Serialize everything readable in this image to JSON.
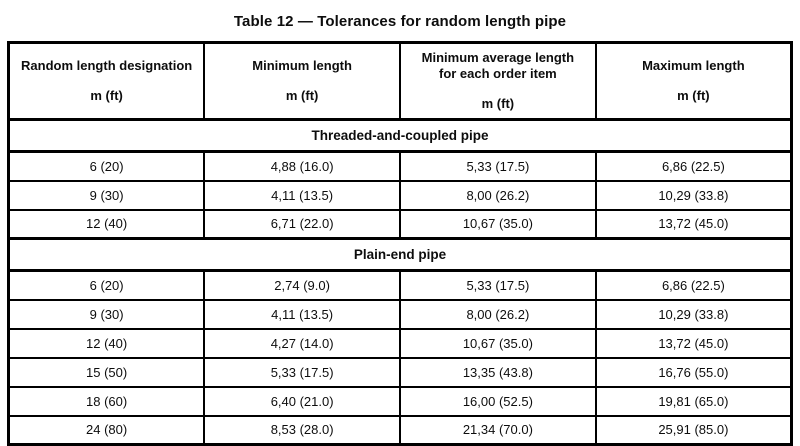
{
  "title": "Table 12 — Tolerances for random length pipe",
  "table": {
    "columns": [
      {
        "label": "Random length designation",
        "unit": "m (ft)"
      },
      {
        "label": "Minimum length",
        "unit": "m (ft)"
      },
      {
        "label": "Minimum average length for each order item",
        "unit": "m (ft)"
      },
      {
        "label": "Maximum length",
        "unit": "m (ft)"
      }
    ],
    "sections": [
      {
        "title": "Threaded-and-coupled pipe",
        "rows": [
          [
            "6 (20)",
            "4,88 (16.0)",
            "5,33 (17.5)",
            "6,86 (22.5)"
          ],
          [
            "9 (30)",
            "4,11 (13.5)",
            "8,00 (26.2)",
            "10,29 (33.8)"
          ],
          [
            "12 (40)",
            "6,71 (22.0)",
            "10,67 (35.0)",
            "13,72 (45.0)"
          ]
        ]
      },
      {
        "title": "Plain-end pipe",
        "rows": [
          [
            "6 (20)",
            "2,74 (9.0)",
            "5,33 (17.5)",
            "6,86 (22.5)"
          ],
          [
            "9 (30)",
            "4,11 (13.5)",
            "8,00 (26.2)",
            "10,29 (33.8)"
          ],
          [
            "12 (40)",
            "4,27 (14.0)",
            "10,67 (35.0)",
            "13,72 (45.0)"
          ],
          [
            "15 (50)",
            "5,33 (17.5)",
            "13,35 (43.8)",
            "16,76 (55.0)"
          ],
          [
            "18 (60)",
            "6,40 (21.0)",
            "16,00 (52.5)",
            "19,81 (65.0)"
          ],
          [
            "24 (80)",
            "8,53 (28.0)",
            "21,34 (70.0)",
            "25,91 (85.0)"
          ]
        ]
      }
    ]
  },
  "colors": {
    "border": "#000000",
    "text": "#0d0d0d",
    "background": "#ffffff"
  }
}
